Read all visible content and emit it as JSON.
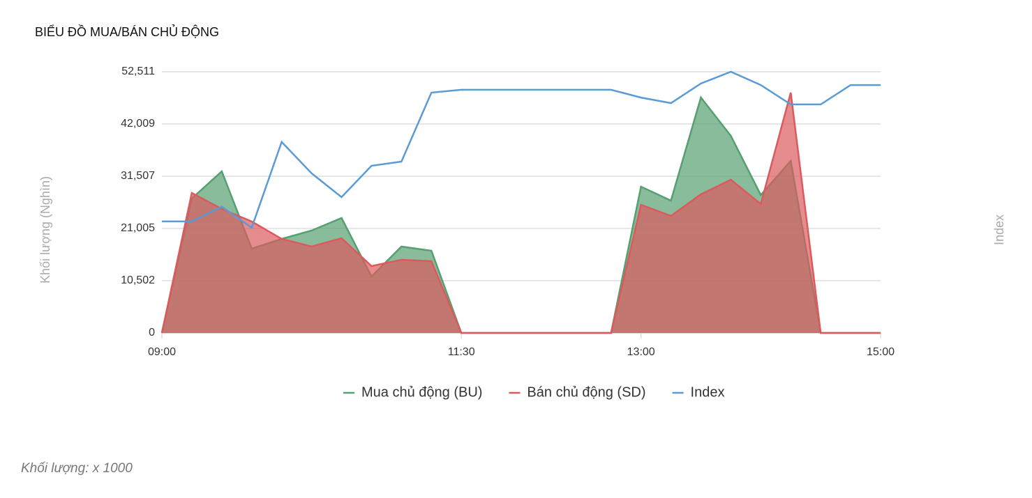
{
  "chart_data": {
    "type": "area",
    "title": "BIỂU ĐỒ MUA/BÁN CHỦ ĐỘNG",
    "ylabel": "Khối lượng (Nghìn)",
    "y2label": "Index",
    "footnote": "Khối lượng: x 1000",
    "categories": [
      "09:00",
      null,
      null,
      null,
      null,
      null,
      null,
      null,
      null,
      null,
      "11:30",
      null,
      null,
      null,
      null,
      null,
      "13:00",
      null,
      null,
      null,
      null,
      null,
      null,
      null,
      "15:00"
    ],
    "ylim": [
      0,
      52511
    ],
    "yticks": [
      0,
      {
        "value": 10502,
        "label": "10,502"
      },
      {
        "value": 21005,
        "label": "21,005"
      },
      {
        "value": 31507,
        "label": "31,507"
      },
      {
        "value": 42009,
        "label": "42,009"
      },
      {
        "value": 52511,
        "label": "52,511"
      }
    ],
    "y2lim": [
      0,
      100
    ],
    "grid": true,
    "series": [
      {
        "name": "Mua chủ động (BU)",
        "color": "#55a070",
        "values": [
          0,
          27026,
          32487,
          16944,
          18904,
          20584,
          23105,
          11342,
          17364,
          16523,
          0,
          0,
          0,
          0,
          0,
          0,
          29406,
          26606,
          47330,
          39628,
          27726,
          34587,
          0,
          0,
          0
        ]
      },
      {
        "name": "Bán chủ động (SD)",
        "color": "#dc5a5e",
        "values": [
          0,
          28146,
          24925,
          22405,
          18904,
          17364,
          19044,
          13443,
          14703,
          14423,
          0,
          0,
          0,
          0,
          0,
          0,
          25765,
          23525,
          27866,
          30807,
          25906,
          48310,
          0,
          0,
          0
        ]
      },
      {
        "name": "Index",
        "color": "#5b9bd5",
        "axis": "y2",
        "type": "line",
        "values": [
          42.7,
          42.7,
          48.3,
          40.3,
          73.1,
          61.1,
          52,
          64,
          65.6,
          92,
          93.1,
          93.1,
          93.1,
          93.1,
          93.1,
          93.1,
          90.1,
          88,
          95.5,
          100,
          94.9,
          87.5,
          87.5,
          94.9,
          94.9
        ]
      }
    ]
  }
}
